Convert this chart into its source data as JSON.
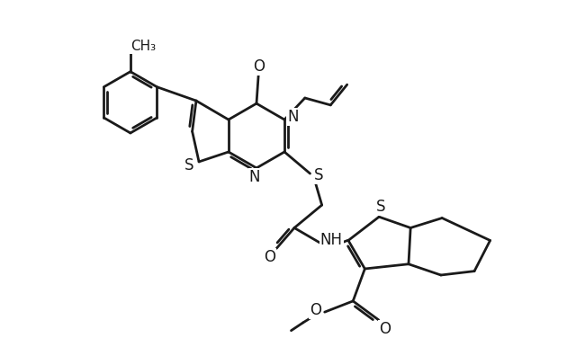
{
  "background_color": "#ffffff",
  "line_color": "#1a1a1a",
  "line_width": 2.0,
  "font_size": 12,
  "figsize": [
    6.4,
    3.76
  ],
  "dpi": 100,
  "xlim": [
    0,
    12
  ],
  "ylim": [
    0,
    8.5
  ]
}
